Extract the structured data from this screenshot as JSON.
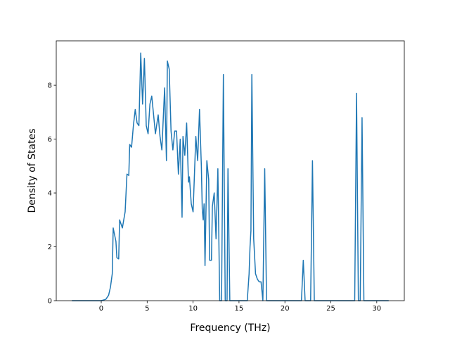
{
  "chart_data": {
    "type": "line",
    "xlabel": "Frequency (THz)",
    "ylabel": "Density of States",
    "xlim": [
      -4.9,
      33.0
    ],
    "ylim": [
      0,
      9.65
    ],
    "xticks": [
      0,
      5,
      10,
      15,
      20,
      25,
      30
    ],
    "yticks": [
      0,
      2,
      4,
      6,
      8
    ],
    "series": [
      {
        "color": "#1f77b4",
        "x": [
          -3.2,
          0,
          0.5,
          0.8,
          1.0,
          1.2,
          1.3,
          1.6,
          1.7,
          1.9,
          2.0,
          2.3,
          2.6,
          2.8,
          3.0,
          3.1,
          3.3,
          3.5,
          3.7,
          3.9,
          4.1,
          4.3,
          4.5,
          4.7,
          4.9,
          5.1,
          5.3,
          5.5,
          5.7,
          5.9,
          6.2,
          6.4,
          6.6,
          6.9,
          7.1,
          7.2,
          7.4,
          7.6,
          7.8,
          8.0,
          8.2,
          8.4,
          8.6,
          8.8,
          8.9,
          9.1,
          9.3,
          9.5,
          9.6,
          9.8,
          10.0,
          10.3,
          10.5,
          10.7,
          10.9,
          11.0,
          11.1,
          11.2,
          11.3,
          11.5,
          11.7,
          11.8,
          12.0,
          12.1,
          12.3,
          12.5,
          12.7,
          12.9,
          13.1,
          13.3,
          13.5,
          13.7,
          13.8,
          14.0,
          15.9,
          16.1,
          16.2,
          16.3,
          16.4,
          16.6,
          16.8,
          17.0,
          17.2,
          17.4,
          17.6,
          17.8,
          18.0,
          21.8,
          22.0,
          22.2,
          22.8,
          23.0,
          23.2,
          27.6,
          27.8,
          28.0,
          28.2,
          28.4,
          28.6,
          31.3
        ],
        "values": [
          0,
          0,
          0.05,
          0.2,
          0.5,
          1.0,
          2.7,
          2.2,
          1.6,
          1.55,
          3.0,
          2.7,
          3.3,
          4.7,
          4.65,
          5.8,
          5.7,
          6.5,
          7.1,
          6.6,
          6.5,
          9.2,
          7.3,
          9.0,
          6.5,
          6.2,
          7.3,
          7.6,
          6.9,
          6.2,
          6.9,
          6.1,
          5.6,
          7.9,
          5.2,
          8.9,
          8.6,
          6.3,
          5.6,
          6.3,
          6.3,
          4.7,
          6.0,
          3.1,
          6.1,
          5.4,
          6.6,
          4.4,
          4.6,
          3.6,
          3.3,
          6.1,
          5.2,
          7.1,
          5.0,
          3.4,
          3.0,
          3.6,
          1.3,
          5.2,
          4.5,
          1.5,
          1.5,
          3.5,
          4.0,
          2.3,
          4.9,
          0,
          0,
          8.4,
          0,
          0,
          4.9,
          0,
          0,
          1.0,
          2.0,
          2.6,
          8.4,
          2.3,
          1.0,
          0.8,
          0.7,
          0.7,
          0,
          4.9,
          0,
          0,
          1.5,
          0,
          0,
          5.2,
          0,
          0,
          7.7,
          0,
          0,
          6.8,
          0,
          0
        ]
      }
    ]
  }
}
